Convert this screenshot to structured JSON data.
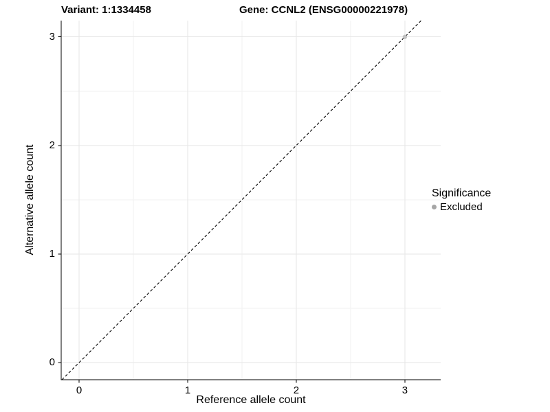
{
  "header": {
    "variant_title": "Variant: 1:1334458",
    "gene_title": "Gene: CCNL2 (ENSG00000221978)"
  },
  "chart_data": {
    "type": "scatter",
    "xlabel": "Reference allele count",
    "ylabel": "Alternative allele count",
    "xlim": [
      -0.165,
      3.33
    ],
    "ylim": [
      -0.158,
      3.15
    ],
    "x_ticks": [
      0,
      1,
      2,
      3
    ],
    "y_ticks": [
      0,
      1,
      2,
      3
    ],
    "minor_ticks_x": [
      0.5,
      1.5,
      2.5
    ],
    "minor_ticks_y": [
      0.5,
      1.5,
      2.5
    ],
    "grid": "on",
    "identity_line": {
      "style": "dashed",
      "color": "#000000",
      "equation": "y = x",
      "span": [
        -0.158,
        3.15
      ]
    },
    "series": [
      {
        "name": "Excluded",
        "color": "#c2c2c2",
        "points": [
          [
            3,
            3
          ]
        ],
        "point_radius": 3.2
      }
    ],
    "legend": {
      "title": "Significance",
      "position": "right",
      "entries": [
        {
          "label": "Excluded",
          "color": "#a6a6a6"
        }
      ]
    }
  },
  "colors": {
    "background": "#ffffff",
    "grid_major": "#e6e6e6",
    "grid_minor": "#f2f2f2",
    "axis_line": "#000000",
    "text": "#000000"
  }
}
